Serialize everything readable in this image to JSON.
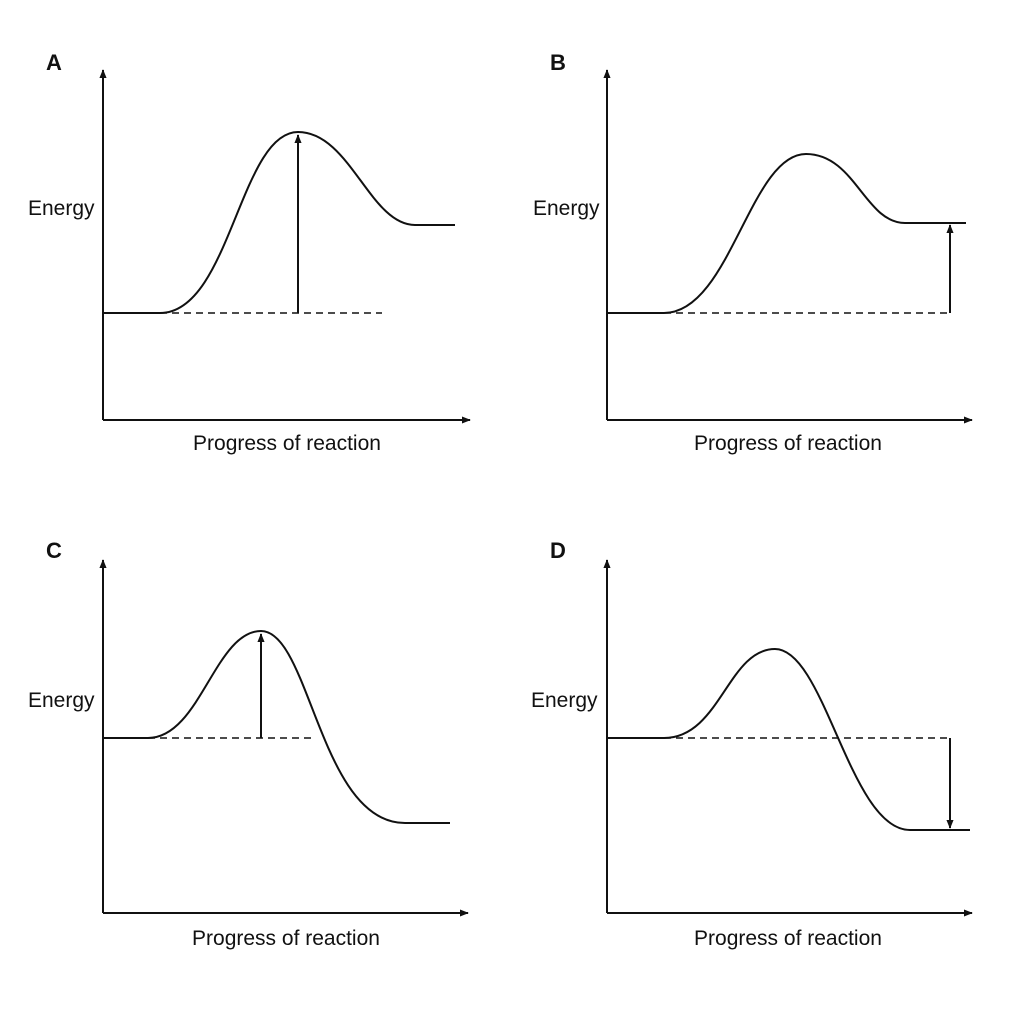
{
  "panels": [
    {
      "letter": "A",
      "ylabel": "Energy",
      "xlabel": "Progress of reaction",
      "arrow": "reactant-to-peak",
      "direction": "up"
    },
    {
      "letter": "B",
      "ylabel": "Energy",
      "xlabel": "Progress of reaction",
      "arrow": "reactant-to-product",
      "direction": "up"
    },
    {
      "letter": "C",
      "ylabel": "Energy",
      "xlabel": "Progress of reaction",
      "arrow": "reactant-to-peak",
      "direction": "up"
    },
    {
      "letter": "D",
      "ylabel": "Energy",
      "xlabel": "Progress of reaction",
      "arrow": "reactant-to-product",
      "direction": "down"
    }
  ]
}
